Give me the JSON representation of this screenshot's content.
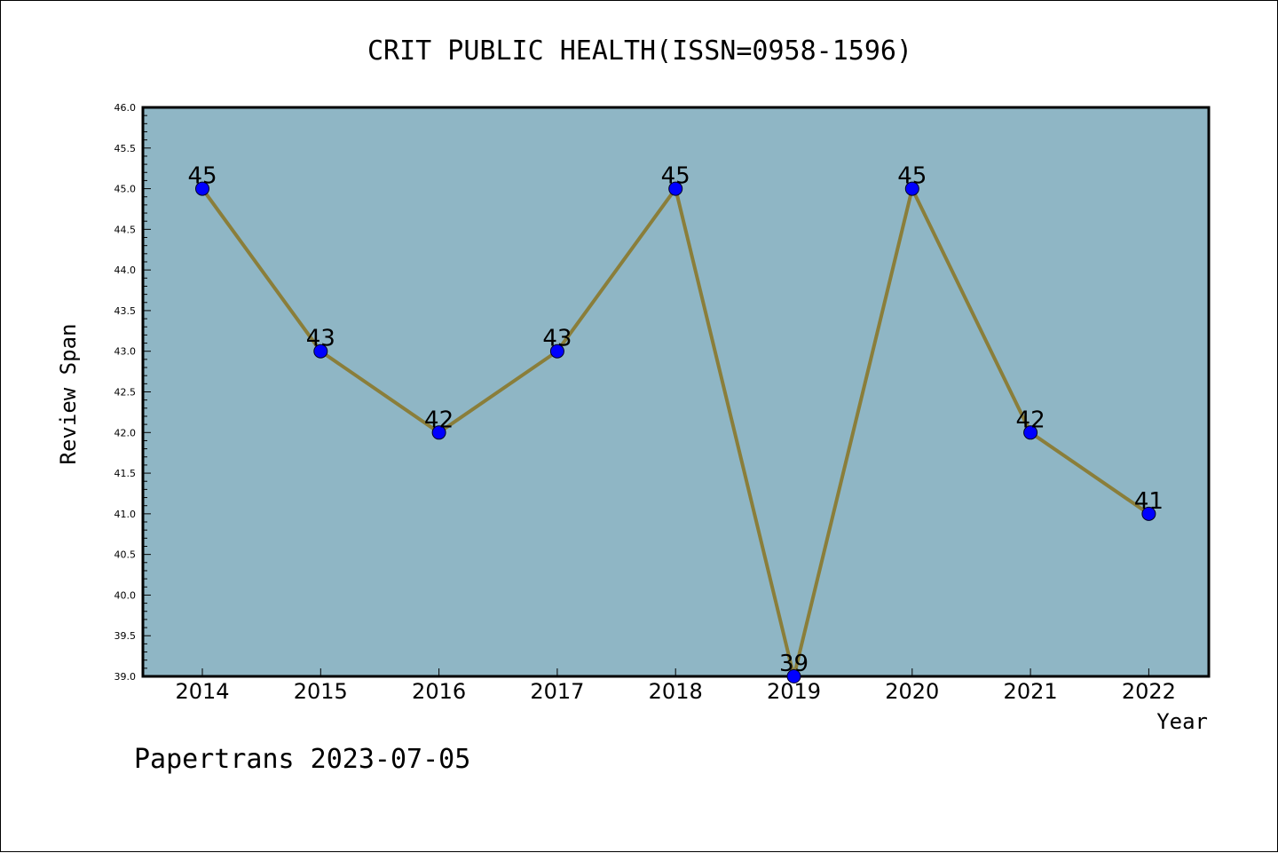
{
  "chart_data": {
    "type": "line",
    "title": "CRIT PUBLIC HEALTH(ISSN=0958-1596)",
    "xlabel": "Year",
    "ylabel": "Review Span",
    "categories": [
      "2014",
      "2015",
      "2016",
      "2017",
      "2018",
      "2019",
      "2020",
      "2021",
      "2022"
    ],
    "values": [
      45,
      43,
      42,
      43,
      45,
      39,
      45,
      42,
      41
    ],
    "ylim": [
      39.0,
      46.0
    ],
    "yticks": [
      "39.0",
      "39.5",
      "40.0",
      "40.5",
      "41.0",
      "41.5",
      "42.0",
      "42.5",
      "43.0",
      "43.5",
      "44.0",
      "44.5",
      "45.0",
      "45.5",
      "46.0"
    ],
    "grid": false,
    "plot_background": "#8fb6c5",
    "line_color": "#8a7e3a",
    "marker_color": "#0000ff"
  },
  "footer": "Papertrans 2023-07-05"
}
